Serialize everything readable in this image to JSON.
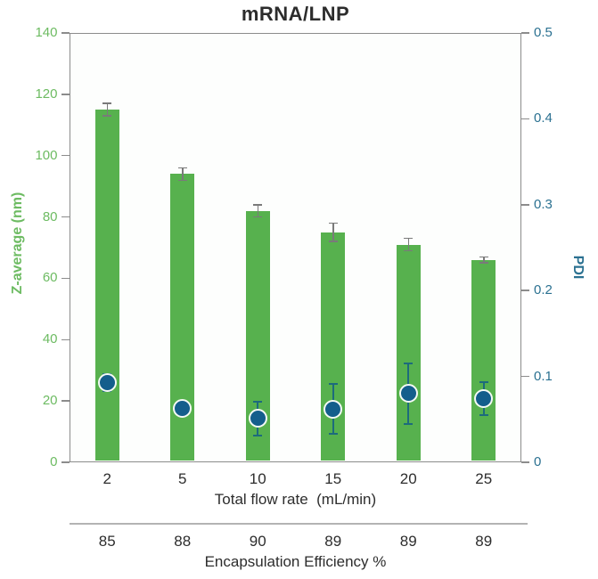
{
  "title": "mRNA/LNP",
  "chart_data": {
    "type": "bar",
    "subtype": "dual-axis bar + scatter with error bars",
    "categories": [
      "2",
      "5",
      "10",
      "15",
      "20",
      "25"
    ],
    "series": [
      {
        "name": "Z-average (nm)",
        "type": "bar",
        "axis": "left",
        "values": [
          115,
          94,
          82,
          75,
          71,
          66
        ],
        "errors": [
          2,
          2,
          2,
          3,
          2,
          1
        ],
        "color": "#57b14e"
      },
      {
        "name": "PDI",
        "type": "scatter",
        "axis": "right",
        "values": [
          0.093,
          0.063,
          0.051,
          0.062,
          0.08,
          0.074
        ],
        "errors": [
          0.01,
          0.005,
          0.02,
          0.029,
          0.035,
          0.019
        ],
        "color": "#145e8c"
      }
    ],
    "left_axis": {
      "label": "Z-average (nm)",
      "min": 0,
      "max": 140,
      "ticks": [
        "0",
        "20",
        "40",
        "60",
        "80",
        "100",
        "120",
        "140"
      ],
      "color": "#6dbb62"
    },
    "right_axis": {
      "label": "PDI",
      "min": 0,
      "max": 0.5,
      "ticks": [
        "0",
        "0.1",
        "0.2",
        "0.3",
        "0.4",
        "0.5"
      ],
      "color": "#2b7191"
    },
    "x_axis": {
      "label": "Total flow rate  (mL/min)",
      "tick_labels": [
        "2",
        "5",
        "10",
        "15",
        "20",
        "25"
      ]
    },
    "footer": {
      "label": "Encapsulation Efficiency %",
      "values": [
        "85",
        "88",
        "90",
        "89",
        "89",
        "89"
      ]
    },
    "title": "mRNA/LNP",
    "legend": "none",
    "grid": false,
    "colors": {
      "bar_green": "#57b14e",
      "green_text": "#6dbb62",
      "dot_blue": "#145e8c",
      "blue_text": "#2b7191",
      "pdi_error": "#1d6b7c",
      "bar_error": "#7a7a7a",
      "spine_gray": "#8c8c8c",
      "dark_text": "#2d2d2d"
    }
  }
}
